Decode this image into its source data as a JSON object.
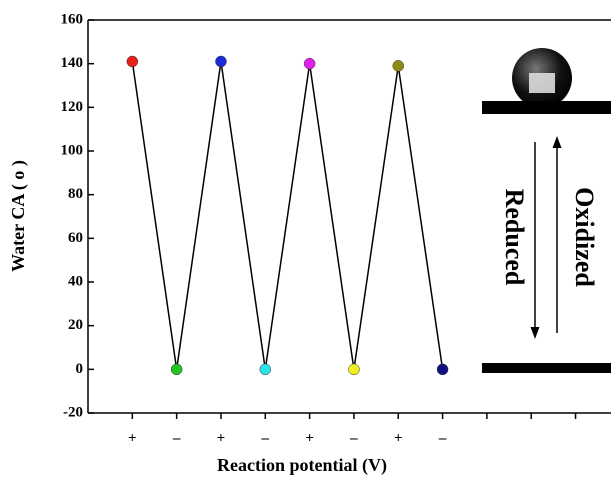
{
  "chart_data": {
    "type": "line",
    "x_label": "Reaction potential (V)",
    "y_label": "Water CA ( o )",
    "categories": [
      "+",
      "–",
      "+",
      "–",
      "+",
      "–",
      "+",
      "–",
      null,
      null,
      null
    ],
    "values": [
      141,
      0,
      141,
      0,
      140,
      0,
      139,
      0,
      null,
      null,
      null
    ],
    "line_color": "#000000",
    "point_colors": [
      "#e8201c",
      "#22c422",
      "#1c2cd8",
      "#2ee0e8",
      "#e020e8",
      "#f0f020",
      "#8c8c10",
      "#101080",
      null,
      null,
      null
    ],
    "ylim": [
      -20,
      160
    ],
    "yticks": [
      -20,
      0,
      20,
      40,
      60,
      80,
      100,
      120,
      140,
      160
    ],
    "annotations": [
      "Reduced",
      "Oxidized"
    ]
  }
}
